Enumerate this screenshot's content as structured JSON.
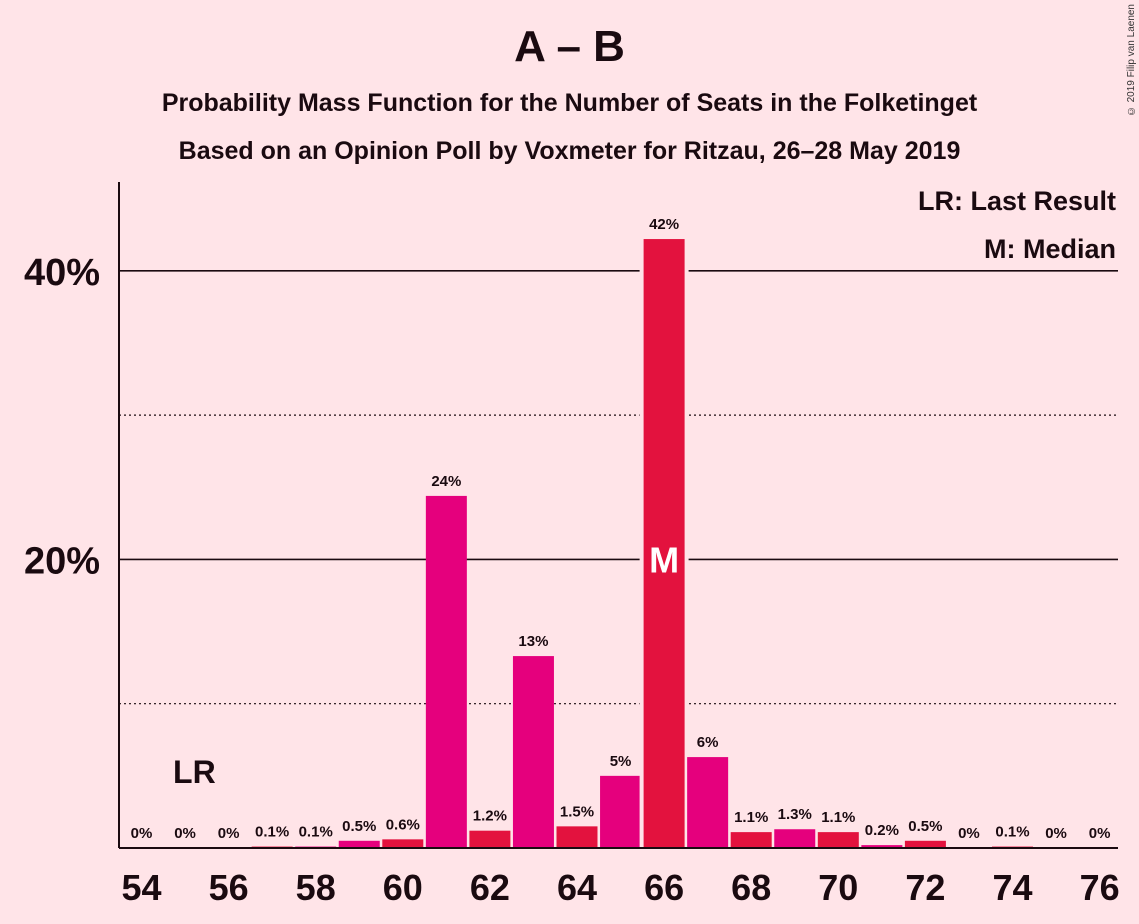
{
  "title": "A – B",
  "subtitle1": "Probability Mass Function for the Number of Seats in the Folketinget",
  "subtitle2": "Based on an Opinion Poll by Voxmeter for Ritzau, 26–28 May 2019",
  "copyright": "© 2019 Filip van Laenen",
  "legend": {
    "last_result": "LR: Last Result",
    "median": "M: Median"
  },
  "colors": {
    "background": "#ffe4e8",
    "magenta": "#e5007d",
    "red": "#e3123e",
    "text": "#1a0a10"
  },
  "chart_data": {
    "type": "bar",
    "x": [
      54,
      55,
      56,
      57,
      58,
      59,
      60,
      61,
      62,
      63,
      64,
      65,
      66,
      67,
      68,
      69,
      70,
      71,
      72,
      73,
      74,
      75,
      76
    ],
    "values": [
      0,
      0,
      0,
      0.1,
      0.1,
      0.5,
      0.6,
      24.4,
      1.2,
      13.3,
      1.5,
      5.0,
      42.2,
      6.3,
      1.1,
      1.3,
      1.1,
      0.2,
      0.5,
      0,
      0.1,
      0,
      0
    ],
    "value_labels": [
      "0%",
      "0%",
      "0%",
      "0.1%",
      "0.1%",
      "0.5%",
      "0.6%",
      "24%",
      "1.2%",
      "13%",
      "1.5%",
      "5%",
      "42%",
      "6%",
      "1.1%",
      "1.3%",
      "1.1%",
      "0.2%",
      "0.5%",
      "0%",
      "0.1%",
      "0%",
      "0%"
    ],
    "bar_colors": [
      "magenta",
      "red",
      "magenta",
      "red",
      "magenta",
      "magenta",
      "red",
      "magenta",
      "red",
      "magenta",
      "red",
      "magenta",
      "red",
      "magenta",
      "red",
      "magenta",
      "red",
      "magenta",
      "red",
      "magenta",
      "red",
      "magenta",
      "red"
    ],
    "x_tick_labels": [
      "54",
      "56",
      "58",
      "60",
      "62",
      "64",
      "66",
      "68",
      "70",
      "72",
      "74",
      "76"
    ],
    "y_tick_labels": [
      "20%",
      "40%"
    ],
    "ylim": [
      0,
      46
    ],
    "major_gridlines": [
      20,
      40
    ],
    "minor_gridlines": [
      10,
      30
    ],
    "last_result": {
      "seat": 55,
      "label": "LR"
    },
    "median": {
      "seat": 66,
      "label": "M"
    }
  }
}
